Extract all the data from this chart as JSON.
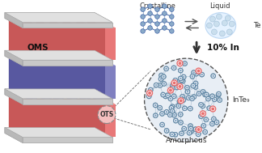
{
  "bg_color": "#ffffff",
  "label_OMS": "OMS",
  "label_OTS": "OTS",
  "label_crystalline": "Crystalline",
  "label_liquid": "Liquid",
  "label_Te": "Te",
  "label_10In": "10% In",
  "label_InTe9": "InTe₉",
  "label_amorphous": "Amorphous",
  "color_red": "#E87878",
  "color_red_dark": "#C85858",
  "color_red_light": "#F0A0A0",
  "color_blue": "#8080C0",
  "color_blue_dark": "#5858A0",
  "color_blue_light": "#A0A0D8",
  "color_plate_top": "#E0E0E0",
  "color_plate_front": "#C8C8C8",
  "color_plate_side": "#B0B0B0",
  "color_te_node": "#8aaac8",
  "color_in_node": "#e87070",
  "color_edge": "#6688aa"
}
